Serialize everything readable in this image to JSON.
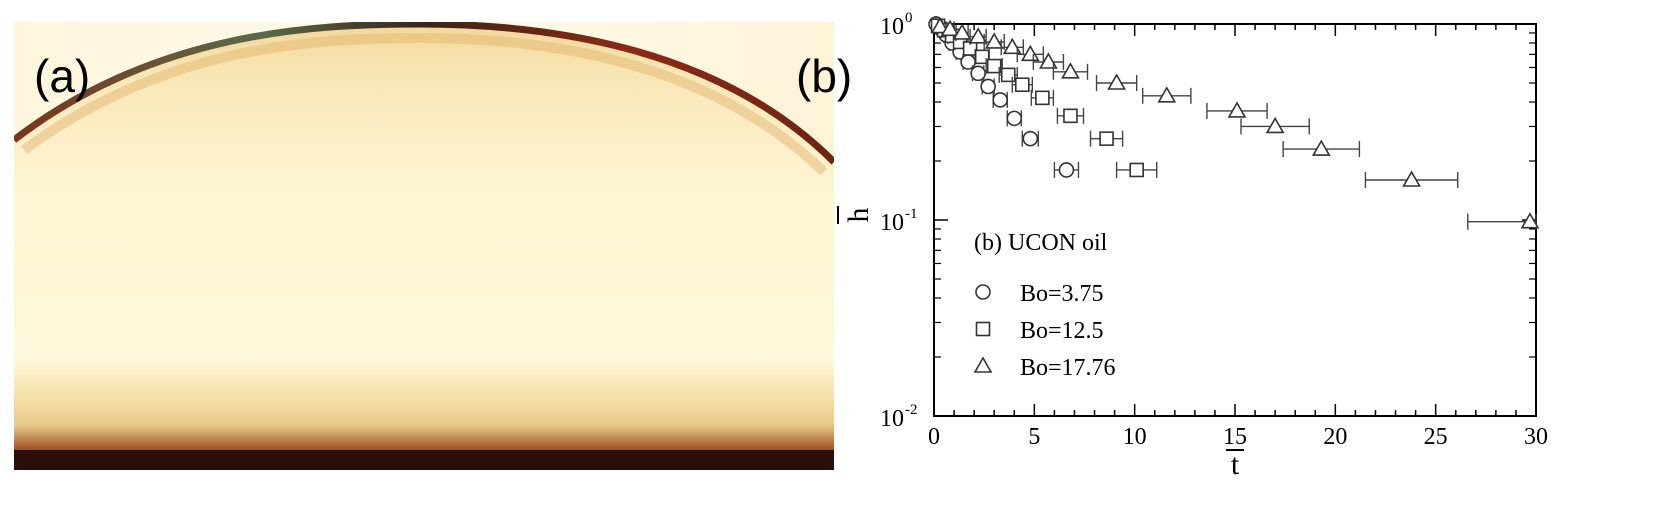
{
  "panels": {
    "a_label": "(a)",
    "b_label": "(b)"
  },
  "photo": {
    "colors": {
      "background": "#ffffff",
      "drop_light": "#fff7d6",
      "drop_mid": "#f7e7b0",
      "rim_dark": "#6e2410",
      "base_dark": "#2a0f08"
    }
  },
  "chart_data": {
    "type": "scatter",
    "xlabel": "t",
    "ylabel": "h",
    "xlim": [
      0,
      30
    ],
    "ylim": [
      0.01,
      1
    ],
    "yscale": "log",
    "x_ticks": [
      "0",
      "5",
      "10",
      "15",
      "20",
      "25",
      "30"
    ],
    "y_ticks": [
      {
        "base": "10",
        "exp": "-2"
      },
      {
        "base": "10",
        "exp": "-1"
      },
      {
        "base": "10",
        "exp": "0"
      }
    ],
    "grid": false,
    "legend": {
      "title": "(b) UCON oil",
      "placement": "lower-left"
    },
    "series": [
      {
        "name": "Bo=3.75",
        "marker": "circle",
        "points": [
          {
            "x": 0.1,
            "y": 1.0,
            "xerr": 0.05
          },
          {
            "x": 0.3,
            "y": 0.95,
            "xerr": 0.1
          },
          {
            "x": 0.6,
            "y": 0.88,
            "xerr": 0.12
          },
          {
            "x": 0.9,
            "y": 0.8,
            "xerr": 0.15
          },
          {
            "x": 1.3,
            "y": 0.72,
            "xerr": 0.2
          },
          {
            "x": 1.7,
            "y": 0.64,
            "xerr": 0.25
          },
          {
            "x": 2.2,
            "y": 0.56,
            "xerr": 0.28
          },
          {
            "x": 2.7,
            "y": 0.48,
            "xerr": 0.3
          },
          {
            "x": 3.3,
            "y": 0.41,
            "xerr": 0.35
          },
          {
            "x": 4.0,
            "y": 0.33,
            "xerr": 0.35
          },
          {
            "x": 4.8,
            "y": 0.26,
            "xerr": 0.4
          },
          {
            "x": 6.6,
            "y": 0.18,
            "xerr": 0.6
          }
        ]
      },
      {
        "name": "Bo=12.5",
        "marker": "square",
        "points": [
          {
            "x": 0.2,
            "y": 0.98,
            "xerr": 0.1
          },
          {
            "x": 0.5,
            "y": 0.93,
            "xerr": 0.15
          },
          {
            "x": 0.9,
            "y": 0.87,
            "xerr": 0.2
          },
          {
            "x": 1.3,
            "y": 0.81,
            "xerr": 0.25
          },
          {
            "x": 1.8,
            "y": 0.75,
            "xerr": 0.3
          },
          {
            "x": 2.4,
            "y": 0.68,
            "xerr": 0.35
          },
          {
            "x": 3.0,
            "y": 0.61,
            "xerr": 0.4
          },
          {
            "x": 3.7,
            "y": 0.55,
            "xerr": 0.45
          },
          {
            "x": 4.4,
            "y": 0.49,
            "xerr": 0.5
          },
          {
            "x": 5.4,
            "y": 0.42,
            "xerr": 0.55
          },
          {
            "x": 6.8,
            "y": 0.34,
            "xerr": 0.65
          },
          {
            "x": 8.6,
            "y": 0.26,
            "xerr": 0.8
          },
          {
            "x": 10.1,
            "y": 0.18,
            "xerr": 1.0
          }
        ]
      },
      {
        "name": "Bo=17.76",
        "marker": "triangle",
        "points": [
          {
            "x": 0.3,
            "y": 0.97,
            "xerr": 0.1
          },
          {
            "x": 0.8,
            "y": 0.94,
            "xerr": 0.2
          },
          {
            "x": 1.4,
            "y": 0.9,
            "xerr": 0.3
          },
          {
            "x": 2.2,
            "y": 0.86,
            "xerr": 0.4
          },
          {
            "x": 3.0,
            "y": 0.81,
            "xerr": 0.5
          },
          {
            "x": 3.9,
            "y": 0.76,
            "xerr": 0.55
          },
          {
            "x": 4.8,
            "y": 0.7,
            "xerr": 0.65
          },
          {
            "x": 5.7,
            "y": 0.64,
            "xerr": 0.75
          },
          {
            "x": 6.8,
            "y": 0.57,
            "xerr": 0.85
          },
          {
            "x": 9.1,
            "y": 0.5,
            "xerr": 1.0
          },
          {
            "x": 11.6,
            "y": 0.43,
            "xerr": 1.2
          },
          {
            "x": 15.1,
            "y": 0.36,
            "xerr": 1.5
          },
          {
            "x": 17.0,
            "y": 0.3,
            "xerr": 1.7
          },
          {
            "x": 19.3,
            "y": 0.23,
            "xerr": 1.9
          },
          {
            "x": 23.8,
            "y": 0.16,
            "xerr": 2.3
          },
          {
            "x": 29.7,
            "y": 0.098,
            "xerr": 3.1
          }
        ]
      }
    ]
  }
}
